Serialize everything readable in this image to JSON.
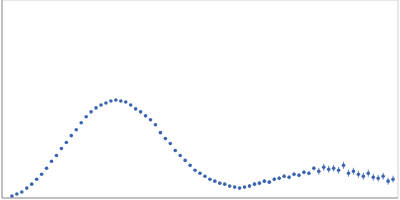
{
  "chart_data": {
    "type": "scatter",
    "x": [
      0.1,
      0.15,
      0.2,
      0.25,
      0.3,
      0.35,
      0.4,
      0.45,
      0.5,
      0.55,
      0.6,
      0.65,
      0.7,
      0.75,
      0.8,
      0.85,
      0.9,
      0.95,
      1.0,
      1.05,
      1.1,
      1.15,
      1.2,
      1.25,
      1.3,
      1.35,
      1.4,
      1.45,
      1.5,
      1.55,
      1.6,
      1.65,
      1.7,
      1.75,
      1.8,
      1.85,
      1.9,
      1.95,
      2.0,
      2.05,
      2.1,
      2.15,
      2.2,
      2.25,
      2.3,
      2.35,
      2.4,
      2.45,
      2.5,
      2.55,
      2.6,
      2.65,
      2.7,
      2.75,
      2.8,
      2.85,
      2.9,
      2.95,
      3.0,
      3.05,
      3.1,
      3.15,
      3.2,
      3.25,
      3.3,
      3.35,
      3.4,
      3.45,
      3.5,
      3.55,
      3.6,
      3.65,
      3.7,
      3.75,
      3.8,
      3.85,
      3.9,
      3.95
    ],
    "values": [
      0.02,
      0.04,
      0.06,
      0.1,
      0.14,
      0.19,
      0.24,
      0.3,
      0.37,
      0.43,
      0.5,
      0.56,
      0.63,
      0.69,
      0.76,
      0.82,
      0.87,
      0.91,
      0.94,
      0.96,
      0.98,
      0.99,
      0.98,
      0.97,
      0.94,
      0.9,
      0.87,
      0.83,
      0.79,
      0.74,
      0.66,
      0.6,
      0.55,
      0.48,
      0.43,
      0.38,
      0.33,
      0.28,
      0.25,
      0.22,
      0.19,
      0.17,
      0.15,
      0.14,
      0.12,
      0.11,
      0.1,
      0.11,
      0.12,
      0.14,
      0.15,
      0.17,
      0.16,
      0.19,
      0.2,
      0.22,
      0.21,
      0.24,
      0.23,
      0.26,
      0.25,
      0.3,
      0.27,
      0.31,
      0.29,
      0.3,
      0.28,
      0.33,
      0.25,
      0.27,
      0.24,
      0.22,
      0.25,
      0.21,
      0.2,
      0.22,
      0.17,
      0.19
    ],
    "errors": [
      0.005,
      0.005,
      0.005,
      0.005,
      0.005,
      0.005,
      0.005,
      0.005,
      0.005,
      0.005,
      0.005,
      0.005,
      0.005,
      0.005,
      0.005,
      0.005,
      0.005,
      0.005,
      0.005,
      0.005,
      0.005,
      0.005,
      0.005,
      0.005,
      0.005,
      0.005,
      0.005,
      0.005,
      0.01,
      0.01,
      0.01,
      0.01,
      0.01,
      0.01,
      0.01,
      0.01,
      0.01,
      0.01,
      0.01,
      0.01,
      0.01,
      0.01,
      0.01,
      0.01,
      0.01,
      0.01,
      0.01,
      0.01,
      0.02,
      0.02,
      0.02,
      0.02,
      0.02,
      0.02,
      0.02,
      0.02,
      0.02,
      0.02,
      0.02,
      0.02,
      0.02,
      0.02,
      0.035,
      0.035,
      0.035,
      0.035,
      0.035,
      0.035,
      0.035,
      0.035,
      0.035,
      0.035,
      0.035,
      0.035,
      0.035,
      0.035,
      0.035,
      0.035
    ],
    "xlim": [
      0,
      4
    ],
    "xticks": [
      1.15
    ],
    "ylim": [
      0,
      2
    ],
    "yticks": [
      1
    ],
    "grid": true,
    "tick_labels": false,
    "color": "#3b64b0",
    "marker": "circle"
  }
}
